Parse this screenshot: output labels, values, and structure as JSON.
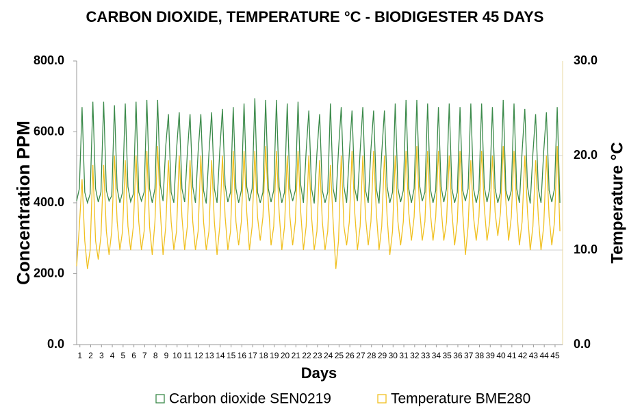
{
  "chart_data": {
    "type": "line",
    "title": "CARBON DIOXIDE, TEMPERATURE °C - BIODIGESTER 45 DAYS",
    "xlabel": "Days",
    "ylabel": "Concentration  PPM",
    "y2label": "Temperature °C",
    "x": [
      0.7,
      0.95,
      1.2,
      1.45,
      1.7,
      1.95,
      2.2,
      2.45,
      2.7,
      2.95,
      3.2,
      3.45,
      3.7,
      3.95,
      4.2,
      4.45,
      4.7,
      4.95,
      5.2,
      5.45,
      5.7,
      5.95,
      6.2,
      6.45,
      6.7,
      6.95,
      7.2,
      7.45,
      7.7,
      7.95,
      8.2,
      8.45,
      8.7,
      8.95,
      9.2,
      9.45,
      9.7,
      9.95,
      10.2,
      10.45,
      10.7,
      10.95,
      11.2,
      11.45,
      11.7,
      11.95,
      12.2,
      12.45,
      12.7,
      12.95,
      13.2,
      13.45,
      13.7,
      13.95,
      14.2,
      14.45,
      14.7,
      14.95,
      15.2,
      15.45,
      15.7,
      15.95,
      16.2,
      16.45,
      16.7,
      16.95,
      17.2,
      17.45,
      17.7,
      17.95,
      18.2,
      18.45,
      18.7,
      18.95,
      19.2,
      19.45,
      19.7,
      19.95,
      20.2,
      20.45,
      20.7,
      20.95,
      21.2,
      21.45,
      21.7,
      21.95,
      22.2,
      22.45,
      22.7,
      22.95,
      23.2,
      23.45,
      23.7,
      23.95,
      24.2,
      24.45,
      24.7,
      24.95,
      25.2,
      25.45,
      25.7,
      25.95,
      26.2,
      26.45,
      26.7,
      26.95,
      27.2,
      27.45,
      27.7,
      27.95,
      28.2,
      28.45,
      28.7,
      28.95,
      29.2,
      29.45,
      29.7,
      29.95,
      30.2,
      30.45,
      30.7,
      30.95,
      31.2,
      31.45,
      31.7,
      31.95,
      32.2,
      32.45,
      32.7,
      32.95,
      33.2,
      33.45,
      33.7,
      33.95,
      34.2,
      34.45,
      34.7,
      34.95,
      35.2,
      35.45,
      35.7,
      35.95,
      36.2,
      36.45,
      36.7,
      36.95,
      37.2,
      37.45,
      37.7,
      37.95,
      38.2,
      38.45,
      38.7,
      38.95,
      39.2,
      39.45,
      39.7,
      39.95,
      40.2,
      40.45,
      40.7,
      40.95,
      41.2,
      41.45,
      41.7,
      41.95,
      42.2,
      42.45,
      42.7,
      42.95,
      43.2,
      43.45,
      43.7,
      43.95,
      44.2,
      44.45,
      44.7,
      44.95,
      45.2,
      45.45
    ],
    "xlim": [
      0.7,
      45.7
    ],
    "xticks": [
      1,
      2,
      3,
      4,
      5,
      6,
      7,
      8,
      9,
      10,
      11,
      12,
      13,
      14,
      15,
      16,
      17,
      18,
      19,
      20,
      21,
      22,
      23,
      24,
      25,
      26,
      27,
      28,
      29,
      30,
      31,
      32,
      33,
      34,
      35,
      36,
      37,
      38,
      39,
      40,
      41,
      42,
      43,
      44,
      45
    ],
    "ylim": [
      0,
      800
    ],
    "yticks": [
      {
        "value": 0,
        "label": "0.0"
      },
      {
        "value": 200,
        "label": "200.0"
      },
      {
        "value": 400,
        "label": "400.0"
      },
      {
        "value": 600,
        "label": "600.0"
      },
      {
        "value": 800,
        "label": "800.0"
      }
    ],
    "y2lim": [
      0,
      30
    ],
    "y2ticks": [
      {
        "value": 0,
        "label": "0.0"
      },
      {
        "value": 10,
        "label": "10.0"
      },
      {
        "value": 20,
        "label": "20.0"
      },
      {
        "value": 30,
        "label": "30.0"
      }
    ],
    "grid": true,
    "legend": "bottom",
    "series": [
      {
        "name": "Carbon dioxide SEN0219",
        "color": "#3b8a4a",
        "axis": "y",
        "values": [
          405,
          440,
          670,
          430,
          400,
          425,
          685,
          440,
          402,
          430,
          685,
          435,
          405,
          420,
          675,
          440,
          400,
          430,
          680,
          445,
          403,
          425,
          685,
          430,
          405,
          430,
          690,
          440,
          400,
          440,
          690,
          450,
          405,
          560,
          650,
          430,
          400,
          550,
          655,
          440,
          402,
          540,
          650,
          445,
          400,
          545,
          650,
          435,
          398,
          540,
          655,
          440,
          400,
          545,
          665,
          450,
          402,
          430,
          670,
          440,
          400,
          435,
          680,
          445,
          405,
          440,
          695,
          430,
          400,
          430,
          690,
          440,
          402,
          435,
          690,
          445,
          400,
          430,
          680,
          440,
          405,
          435,
          685,
          450,
          400,
          545,
          660,
          440,
          398,
          540,
          650,
          435,
          400,
          430,
          680,
          440,
          402,
          550,
          670,
          445,
          400,
          540,
          660,
          440,
          405,
          545,
          670,
          435,
          400,
          550,
          660,
          440,
          398,
          540,
          660,
          445,
          400,
          430,
          680,
          440,
          402,
          435,
          690,
          440,
          400,
          440,
          690,
          450,
          405,
          430,
          680,
          440,
          400,
          435,
          670,
          445,
          402,
          440,
          680,
          440,
          400,
          430,
          670,
          435,
          405,
          440,
          680,
          440,
          400,
          435,
          680,
          445,
          402,
          440,
          670,
          440,
          400,
          430,
          690,
          435,
          405,
          435,
          680,
          440,
          400,
          545,
          665,
          445,
          398,
          540,
          650,
          440,
          400,
          545,
          655,
          435,
          402,
          440,
          670,
          400
        ]
      },
      {
        "name": "Temperature BME280",
        "color": "#f0c020",
        "axis": "y2",
        "values": [
          8.3,
          12.5,
          17.5,
          11,
          8,
          10,
          19,
          11,
          9,
          11.5,
          19,
          12,
          9.5,
          12,
          20,
          13,
          10,
          12,
          19.5,
          12.5,
          10,
          12.5,
          20,
          13,
          10,
          12,
          20.5,
          12.5,
          9.5,
          13,
          21,
          14,
          9.5,
          12.5,
          19.5,
          13,
          10,
          12,
          20,
          13.5,
          10,
          12.5,
          19.5,
          13,
          10,
          12,
          20,
          13,
          10,
          12,
          19.5,
          13,
          9.5,
          12.5,
          20,
          13.5,
          10,
          12,
          20.5,
          13,
          10.5,
          13,
          20.5,
          14,
          10,
          12.5,
          20.5,
          13.5,
          11,
          13.5,
          21,
          15,
          10.5,
          12.5,
          20.5,
          14,
          10,
          12.5,
          20,
          13.5,
          10.5,
          13,
          20.5,
          14,
          10,
          12.5,
          20,
          13.5,
          10,
          12,
          19.5,
          13,
          10,
          12,
          19,
          13,
          8,
          11,
          20,
          12.5,
          10.5,
          13,
          20.5,
          14,
          10,
          12.5,
          20,
          13.5,
          10.5,
          13,
          20.5,
          14,
          10,
          12.5,
          20,
          13.5,
          9.5,
          12,
          20,
          13,
          10.5,
          13,
          20.5,
          14,
          11,
          13.5,
          21,
          14.5,
          11,
          13,
          20.5,
          14,
          11,
          13.5,
          20.5,
          14.5,
          11,
          13,
          20,
          14,
          10.5,
          13,
          20.5,
          14,
          9.5,
          12.5,
          19.5,
          13.5,
          11,
          13.5,
          20.5,
          14.5,
          11,
          13,
          20,
          14,
          11.5,
          14,
          21,
          15,
          11,
          13.5,
          20.5,
          14.5,
          10.5,
          13,
          20,
          14,
          10,
          12.5,
          19.5,
          13.5,
          10,
          12.5,
          20,
          13.5,
          10.5,
          13,
          21,
          12
        ]
      }
    ]
  }
}
